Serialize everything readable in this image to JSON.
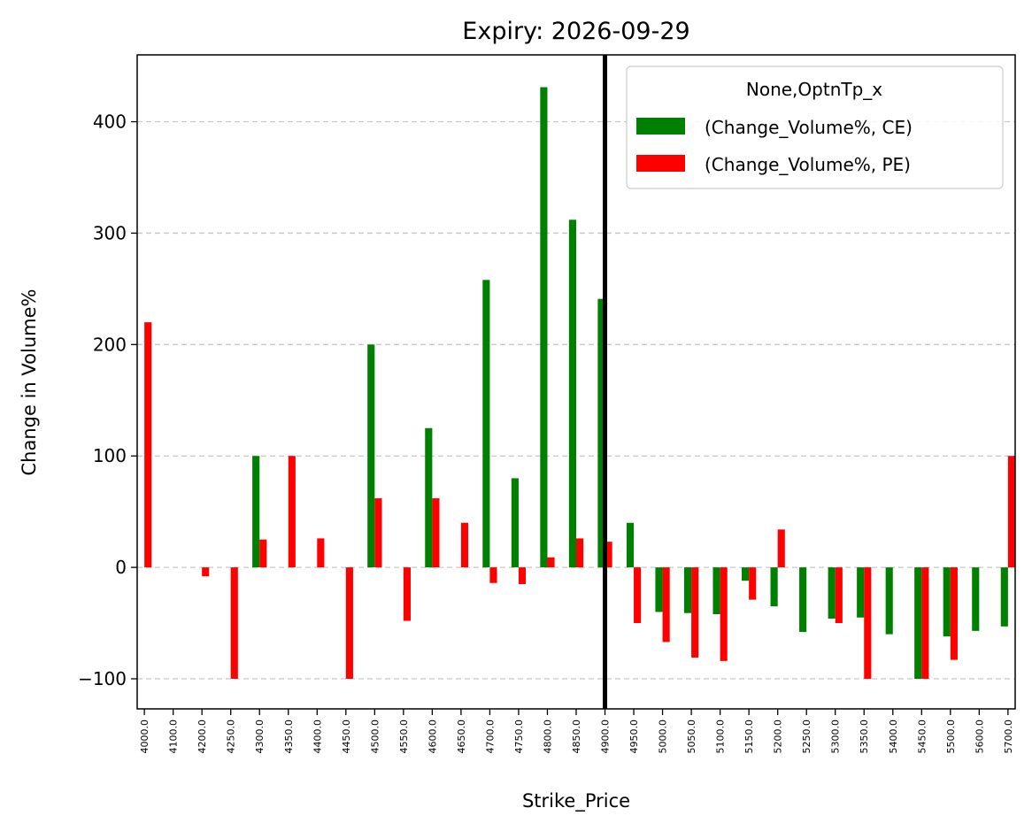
{
  "chart_data": {
    "type": "bar",
    "title": "Expiry: 2026-09-29",
    "xlabel": "Strike_Price",
    "ylabel": "Change in Volume%",
    "ylim": [
      -127,
      460
    ],
    "yticks": [
      -100,
      0,
      100,
      200,
      300,
      400
    ],
    "ytick_labels": [
      "−100",
      "0",
      "100",
      "200",
      "300",
      "400"
    ],
    "grid": "horizontal dashed",
    "legend_position": "top-right",
    "legend_title": "None,OptnTp_x",
    "categories": [
      "4000.0",
      "4100.0",
      "4200.0",
      "4250.0",
      "4300.0",
      "4350.0",
      "4400.0",
      "4450.0",
      "4500.0",
      "4550.0",
      "4600.0",
      "4650.0",
      "4700.0",
      "4750.0",
      "4800.0",
      "4850.0",
      "4900.0",
      "4950.0",
      "5000.0",
      "5050.0",
      "5100.0",
      "5150.0",
      "5200.0",
      "5250.0",
      "5300.0",
      "5350.0",
      "5400.0",
      "5450.0",
      "5500.0",
      "5600.0",
      "5700.0"
    ],
    "series": [
      {
        "name": "(Change_Volume%, CE)",
        "color": "#008000",
        "values": [
          0,
          0,
          0,
          0,
          100,
          0,
          0,
          0,
          200,
          0,
          125,
          0,
          258,
          80,
          431,
          312,
          241,
          40,
          -40,
          -41,
          -42,
          -12,
          -35,
          -58,
          -46,
          -45,
          -60,
          -100,
          -62,
          -57,
          -53
        ]
      },
      {
        "name": "(Change_Volume%, PE)",
        "color": "#ff0000",
        "values": [
          220,
          0,
          -8,
          -100,
          25,
          100,
          26,
          -100,
          62,
          -48,
          62,
          40,
          -14,
          -15,
          9,
          26,
          23,
          -50,
          -67,
          -81,
          -84,
          -29,
          34,
          0,
          -50,
          -100,
          0,
          -100,
          -83,
          0,
          100
        ]
      }
    ],
    "vertical_line": {
      "category": "4900.0",
      "color": "#000000"
    }
  }
}
